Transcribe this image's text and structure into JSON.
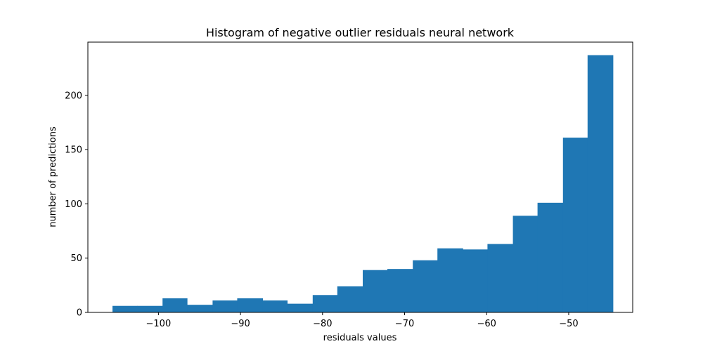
{
  "chart_data": {
    "type": "bar",
    "title": "Histogram of negative outlier residuals neural network",
    "xlabel": "residuals values",
    "ylabel": "number of predictions",
    "xlim": [
      -108.6,
      -42.2
    ],
    "ylim": [
      0,
      249
    ],
    "xticks": [
      -100,
      -90,
      -80,
      -70,
      -60,
      -50
    ],
    "xtick_labels": [
      "−100",
      "−90",
      "−80",
      "−70",
      "−60",
      "−50"
    ],
    "yticks": [
      0,
      50,
      100,
      150,
      200
    ],
    "ytick_labels": [
      "0",
      "50",
      "100",
      "150",
      "200"
    ],
    "grid": false,
    "bar_color": "#1f77b4",
    "bins": [
      {
        "x0": -105.6,
        "x1": -102.6,
        "count": 6
      },
      {
        "x0": -102.6,
        "x1": -99.5,
        "count": 6
      },
      {
        "x0": -99.5,
        "x1": -96.5,
        "count": 13
      },
      {
        "x0": -96.5,
        "x1": -93.4,
        "count": 7
      },
      {
        "x0": -93.4,
        "x1": -90.4,
        "count": 11
      },
      {
        "x0": -90.4,
        "x1": -87.3,
        "count": 13
      },
      {
        "x0": -87.3,
        "x1": -84.3,
        "count": 11
      },
      {
        "x0": -84.3,
        "x1": -81.2,
        "count": 8
      },
      {
        "x0": -81.2,
        "x1": -78.2,
        "count": 16
      },
      {
        "x0": -78.2,
        "x1": -75.1,
        "count": 24
      },
      {
        "x0": -75.1,
        "x1": -72.1,
        "count": 39
      },
      {
        "x0": -72.1,
        "x1": -69.0,
        "count": 40
      },
      {
        "x0": -69.0,
        "x1": -66.0,
        "count": 48
      },
      {
        "x0": -66.0,
        "x1": -62.9,
        "count": 59
      },
      {
        "x0": -62.9,
        "x1": -59.9,
        "count": 58
      },
      {
        "x0": -59.9,
        "x1": -56.8,
        "count": 63
      },
      {
        "x0": -56.8,
        "x1": -53.8,
        "count": 89
      },
      {
        "x0": -53.8,
        "x1": -50.7,
        "count": 101
      },
      {
        "x0": -50.7,
        "x1": -47.7,
        "count": 161
      },
      {
        "x0": -47.7,
        "x1": -44.6,
        "count": 237
      }
    ]
  }
}
